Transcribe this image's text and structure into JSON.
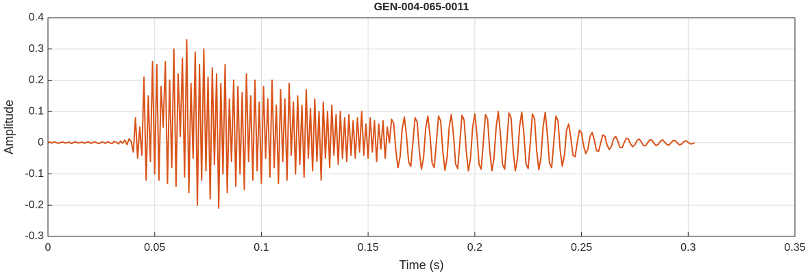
{
  "chart_data": {
    "type": "line",
    "title": "GEN-004-065-0011",
    "x_label": "Time (s)",
    "y_label": "Amplitude",
    "color": "#d95319",
    "grid": true,
    "xlim": [
      0,
      0.35
    ],
    "xticks": [
      0,
      0.05,
      0.1,
      0.15,
      0.2,
      0.25,
      0.3,
      0.35
    ],
    "ylim": [
      -0.3,
      0.4
    ],
    "yticks": [
      -0.3,
      -0.2,
      -0.1,
      0,
      0.1,
      0.2,
      0.3,
      0.4
    ],
    "x": [
      0,
      0.001,
      0.002,
      0.003,
      0.004,
      0.005,
      0.006,
      0.007,
      0.008,
      0.009,
      0.01,
      0.011,
      0.012,
      0.013,
      0.014,
      0.015,
      0.016,
      0.017,
      0.018,
      0.019,
      0.02,
      0.021,
      0.022,
      0.023,
      0.024,
      0.025,
      0.026,
      0.027,
      0.028,
      0.029,
      0.03,
      0.031,
      0.032,
      0.033,
      0.034,
      0.035,
      0.036,
      0.037,
      0.038,
      0.039,
      0.04,
      0.041,
      0.042,
      0.043,
      0.044,
      0.045,
      0.046,
      0.047,
      0.048,
      0.049,
      0.05,
      0.051,
      0.052,
      0.053,
      0.054,
      0.055,
      0.056,
      0.057,
      0.058,
      0.059,
      0.06,
      0.061,
      0.062,
      0.063,
      0.064,
      0.065,
      0.066,
      0.067,
      0.068,
      0.069,
      0.07,
      0.071,
      0.072,
      0.073,
      0.074,
      0.075,
      0.076,
      0.077,
      0.078,
      0.079,
      0.08,
      0.081,
      0.082,
      0.083,
      0.084,
      0.085,
      0.086,
      0.087,
      0.088,
      0.089,
      0.09,
      0.091,
      0.092,
      0.093,
      0.094,
      0.095,
      0.096,
      0.097,
      0.098,
      0.099,
      0.1,
      0.101,
      0.102,
      0.103,
      0.104,
      0.105,
      0.106,
      0.107,
      0.108,
      0.109,
      0.11,
      0.111,
      0.112,
      0.113,
      0.114,
      0.115,
      0.116,
      0.117,
      0.118,
      0.119,
      0.12,
      0.121,
      0.122,
      0.123,
      0.124,
      0.125,
      0.126,
      0.127,
      0.128,
      0.129,
      0.13,
      0.131,
      0.132,
      0.133,
      0.134,
      0.135,
      0.136,
      0.137,
      0.138,
      0.139,
      0.14,
      0.141,
      0.142,
      0.143,
      0.144,
      0.145,
      0.146,
      0.147,
      0.148,
      0.149,
      0.15,
      0.151,
      0.152,
      0.153,
      0.154,
      0.155,
      0.156,
      0.157,
      0.158,
      0.159,
      0.16,
      0.161,
      0.162,
      0.163,
      0.164,
      0.165,
      0.166,
      0.167,
      0.168,
      0.169,
      0.17,
      0.171,
      0.172,
      0.173,
      0.174,
      0.175,
      0.176,
      0.177,
      0.178,
      0.179,
      0.18,
      0.181,
      0.182,
      0.183,
      0.184,
      0.185,
      0.186,
      0.187,
      0.188,
      0.189,
      0.19,
      0.191,
      0.192,
      0.193,
      0.194,
      0.195,
      0.196,
      0.197,
      0.198,
      0.199,
      0.2,
      0.201,
      0.202,
      0.203,
      0.204,
      0.205,
      0.206,
      0.207,
      0.208,
      0.209,
      0.21,
      0.211,
      0.212,
      0.213,
      0.214,
      0.215,
      0.216,
      0.217,
      0.218,
      0.219,
      0.22,
      0.221,
      0.222,
      0.223,
      0.224,
      0.225,
      0.226,
      0.227,
      0.228,
      0.229,
      0.23,
      0.231,
      0.232,
      0.233,
      0.234,
      0.235,
      0.236,
      0.237,
      0.238,
      0.239,
      0.24,
      0.241,
      0.242,
      0.243,
      0.244,
      0.245,
      0.246,
      0.247,
      0.248,
      0.249,
      0.25,
      0.251,
      0.252,
      0.253,
      0.254,
      0.255,
      0.256,
      0.257,
      0.258,
      0.259,
      0.26,
      0.261,
      0.262,
      0.263,
      0.264,
      0.265,
      0.266,
      0.267,
      0.268,
      0.269,
      0.27,
      0.271,
      0.272,
      0.273,
      0.274,
      0.275,
      0.276,
      0.277,
      0.278,
      0.279,
      0.28,
      0.281,
      0.282,
      0.283,
      0.284,
      0.285,
      0.286,
      0.287,
      0.288,
      0.289,
      0.29,
      0.291,
      0.292,
      0.293,
      0.294,
      0.295,
      0.296,
      0.297,
      0.298,
      0.299,
      0.3,
      0.301,
      0.302,
      0.303
    ],
    "values": [
      0,
      0.002,
      -0.001,
      0.003,
      0,
      -0.002,
      0.001,
      0.002,
      -0.001,
      0,
      0.002,
      -0.003,
      0.001,
      0.003,
      -0.001,
      0,
      0.002,
      -0.002,
      0.001,
      0.003,
      -0.002,
      0,
      0.003,
      -0.001,
      -0.003,
      0.002,
      0.001,
      -0.002,
      0.003,
      0,
      -0.003,
      0.004,
      0.002,
      -0.004,
      0.005,
      -0.002,
      0.008,
      -0.006,
      0.012,
      0.004,
      -0.03,
      0.08,
      -0.05,
      0.05,
      -0.04,
      0.21,
      -0.12,
      0.15,
      -0.06,
      0.26,
      -0.1,
      0.25,
      -0.12,
      0.18,
      0.05,
      0.26,
      -0.13,
      0.2,
      -0.08,
      0.3,
      -0.14,
      0.22,
      0.02,
      0.27,
      -0.11,
      0.33,
      -0.16,
      0.19,
      -0.05,
      0.29,
      -0.2,
      0.25,
      -0.12,
      0.3,
      -0.09,
      0.21,
      -0.18,
      0.24,
      -0.07,
      0.22,
      -0.21,
      0.19,
      -0.1,
      0.25,
      -0.16,
      0.14,
      -0.06,
      0.2,
      -0.14,
      0.18,
      -0.1,
      0.16,
      -0.15,
      0.22,
      -0.06,
      0.15,
      -0.12,
      0.2,
      -0.09,
      0.13,
      -0.13,
      0.18,
      -0.05,
      0.14,
      -0.11,
      0.2,
      -0.08,
      0.12,
      -0.13,
      0.17,
      -0.06,
      0.14,
      -0.12,
      0.19,
      -0.04,
      0.13,
      -0.1,
      0.15,
      -0.07,
      0.12,
      -0.11,
      0.17,
      -0.05,
      0.11,
      -0.09,
      0.14,
      -0.06,
      0.1,
      -0.12,
      0.13,
      -0.05,
      0.1,
      -0.08,
      0.12,
      -0.04,
      0.09,
      -0.07,
      0.1,
      -0.05,
      0.08,
      -0.06,
      0.09,
      -0.04,
      0.07,
      -0.05,
      0.08,
      -0.03,
      0.1,
      -0.04,
      0.06,
      -0.05,
      0.08,
      -0.03,
      0.07,
      -0.06,
      0.06,
      -0.02,
      0.07,
      -0.05,
      0.05,
      0,
      0.075,
      0.062,
      -0.025,
      -0.08,
      -0.045,
      0.045,
      0.082,
      0.023,
      -0.062,
      -0.076,
      0,
      0.08,
      0.066,
      -0.026,
      -0.085,
      -0.047,
      0.047,
      0.085,
      0.025,
      -0.065,
      -0.08,
      0.002,
      0.085,
      0.07,
      -0.026,
      -0.088,
      -0.049,
      0.05,
      0.09,
      0.026,
      -0.068,
      -0.083,
      0.001,
      0.088,
      0.072,
      -0.027,
      -0.09,
      -0.05,
      0.05,
      0.092,
      0.027,
      -0.07,
      -0.085,
      0.002,
      0.09,
      0.075,
      -0.026,
      -0.09,
      -0.05,
      0.05,
      0.1,
      0.028,
      -0.07,
      -0.085,
      0.001,
      0.095,
      0.08,
      -0.027,
      -0.09,
      -0.05,
      0.052,
      0.098,
      0.028,
      -0.068,
      -0.083,
      0.001,
      0.092,
      0.076,
      -0.026,
      -0.086,
      -0.048,
      0.05,
      0.097,
      0.026,
      -0.066,
      -0.08,
      0,
      0.085,
      0.07,
      -0.024,
      -0.075,
      -0.04,
      0.04,
      0.06,
      0.015,
      -0.04,
      -0.045,
      0,
      0.04,
      0.032,
      -0.01,
      -0.035,
      -0.02,
      0.02,
      0.033,
      0.008,
      -0.025,
      -0.028,
      0,
      0.025,
      0.02,
      -0.008,
      -0.022,
      -0.012,
      0.012,
      0.02,
      0.005,
      -0.015,
      -0.016,
      0,
      0.014,
      0.012,
      -0.005,
      -0.013,
      -0.007,
      0.007,
      0.012,
      0.003,
      -0.009,
      -0.01,
      0,
      0.009,
      0.008,
      -0.003,
      -0.009,
      -0.005,
      0.005,
      0.009,
      0.002,
      -0.006,
      -0.008,
      0,
      0.007,
      0.006,
      -0.002,
      -0.007,
      -0.004,
      0.004,
      0.006,
      0.001,
      -0.004,
      -0.003,
      0
    ]
  }
}
